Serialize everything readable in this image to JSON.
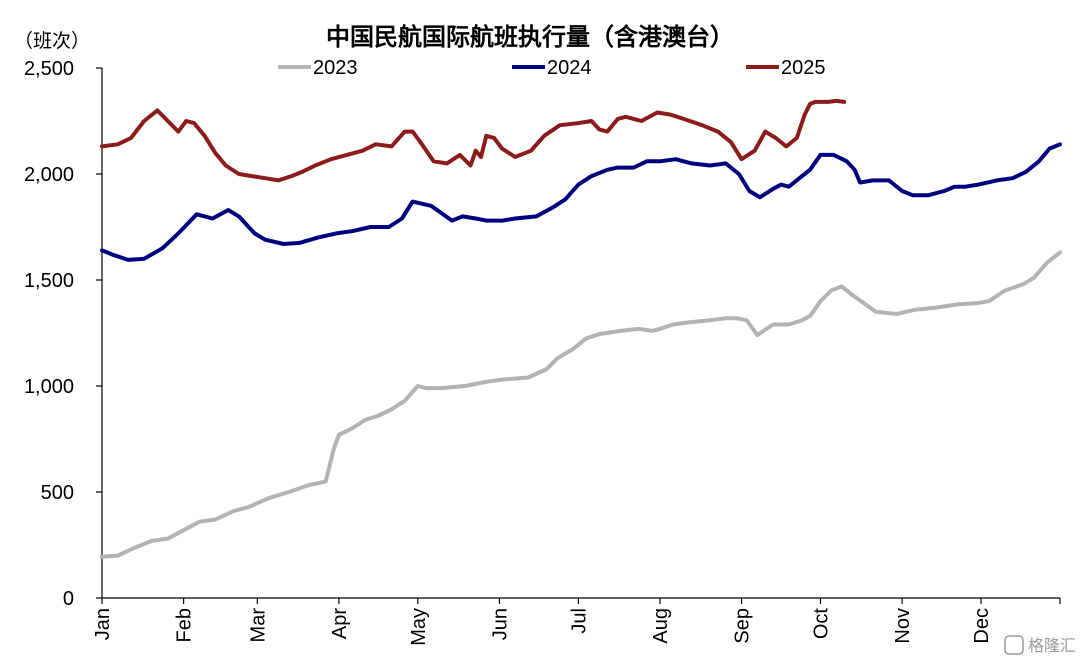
{
  "chart_data": {
    "type": "line",
    "title": "中国民航国际航班执行量（含港澳台）",
    "ylabel": "（班次）",
    "xlabel": "",
    "ylim": [
      0,
      2500
    ],
    "yticks": [
      0,
      500,
      1000,
      1500,
      2000,
      2500
    ],
    "ytick_labels": [
      "0",
      "500",
      "1,000",
      "1,500",
      "2,000",
      "2,500"
    ],
    "x_unit": "day of year",
    "xlim": [
      1,
      365
    ],
    "months": [
      "Jan",
      "Feb",
      "Mar",
      "Apr",
      "May",
      "Jun",
      "Jul",
      "Aug",
      "Sep",
      "Oct",
      "Nov",
      "Dec"
    ],
    "month_start_day": [
      1,
      32,
      60,
      91,
      121,
      152,
      182,
      213,
      244,
      274,
      305,
      335
    ],
    "legend_position": "top",
    "grid": false,
    "series": [
      {
        "name": "2023",
        "color": "#b3b3b3",
        "x": [
          1,
          7,
          14,
          20,
          26,
          32,
          38,
          44,
          51,
          57,
          64,
          72,
          79,
          86,
          89,
          91,
          96,
          101,
          106,
          111,
          116,
          121,
          124,
          130,
          139,
          147,
          153,
          163,
          170,
          174,
          180,
          185,
          190,
          198,
          205,
          210,
          213,
          218,
          224,
          232,
          238,
          242,
          246,
          250,
          256,
          262,
          267,
          270,
          274,
          278,
          282,
          286,
          295,
          303,
          310,
          318,
          326,
          333,
          338,
          344,
          351,
          355,
          360,
          365
        ],
        "values": [
          195,
          200,
          240,
          270,
          280,
          320,
          360,
          370,
          410,
          430,
          470,
          500,
          530,
          550,
          700,
          770,
          800,
          840,
          860,
          890,
          930,
          1000,
          990,
          990,
          1000,
          1020,
          1030,
          1040,
          1080,
          1130,
          1175,
          1225,
          1245,
          1260,
          1270,
          1260,
          1270,
          1290,
          1300,
          1310,
          1320,
          1320,
          1310,
          1240,
          1290,
          1290,
          1310,
          1330,
          1400,
          1450,
          1470,
          1430,
          1350,
          1340,
          1360,
          1370,
          1385,
          1390,
          1400,
          1450,
          1480,
          1510,
          1580,
          1630
        ]
      },
      {
        "name": "2024",
        "color": "#00007f",
        "x": [
          1,
          5,
          11,
          17,
          24,
          30,
          37,
          43,
          49,
          53,
          59,
          63,
          70,
          76,
          83,
          90,
          96,
          103,
          110,
          115,
          119,
          126,
          134,
          138,
          143,
          147,
          153,
          158,
          166,
          172,
          177,
          182,
          187,
          193,
          197,
          203,
          208,
          213,
          219,
          225,
          232,
          238,
          243,
          247,
          251,
          256,
          259,
          262,
          266,
          270,
          274,
          279,
          284,
          287,
          289,
          294,
          300,
          305,
          309,
          315,
          321,
          325,
          329,
          334,
          341,
          347,
          352,
          357,
          361,
          365
        ],
        "values": [
          1640,
          1620,
          1595,
          1600,
          1650,
          1720,
          1810,
          1790,
          1830,
          1800,
          1720,
          1690,
          1670,
          1675,
          1700,
          1720,
          1730,
          1750,
          1750,
          1790,
          1870,
          1850,
          1780,
          1800,
          1790,
          1780,
          1780,
          1790,
          1800,
          1840,
          1880,
          1950,
          1990,
          2020,
          2030,
          2030,
          2060,
          2060,
          2070,
          2050,
          2040,
          2050,
          2000,
          1920,
          1890,
          1930,
          1950,
          1940,
          1980,
          2020,
          2090,
          2090,
          2060,
          2020,
          1960,
          1970,
          1970,
          1920,
          1900,
          1900,
          1920,
          1940,
          1940,
          1950,
          1970,
          1980,
          2010,
          2060,
          2120,
          2140
        ]
      },
      {
        "name": "2025",
        "color": "#8c1b1b",
        "x": [
          1,
          7,
          12,
          17,
          22,
          26,
          30,
          33,
          36,
          40,
          44,
          48,
          53,
          58,
          63,
          68,
          73,
          77,
          82,
          88,
          94,
          100,
          105,
          111,
          116,
          119,
          122,
          127,
          132,
          137,
          141,
          143,
          145,
          147,
          150,
          153,
          158,
          164,
          169,
          175,
          182,
          187,
          190,
          193,
          197,
          200,
          206,
          212,
          217,
          222,
          229,
          235,
          240,
          244,
          249,
          253,
          257,
          261,
          265,
          268,
          270,
          272,
          275,
          277,
          280,
          283
        ],
        "values": [
          2130,
          2140,
          2170,
          2250,
          2300,
          2250,
          2200,
          2250,
          2240,
          2180,
          2100,
          2040,
          2000,
          1990,
          1980,
          1970,
          1990,
          2010,
          2040,
          2070,
          2090,
          2110,
          2140,
          2130,
          2200,
          2200,
          2150,
          2060,
          2050,
          2090,
          2040,
          2110,
          2080,
          2180,
          2170,
          2120,
          2080,
          2110,
          2180,
          2230,
          2240,
          2250,
          2210,
          2200,
          2260,
          2270,
          2250,
          2290,
          2280,
          2260,
          2230,
          2200,
          2150,
          2070,
          2110,
          2200,
          2170,
          2130,
          2170,
          2280,
          2330,
          2340,
          2340,
          2340,
          2345,
          2340
        ]
      }
    ]
  },
  "watermark": "格隆汇"
}
